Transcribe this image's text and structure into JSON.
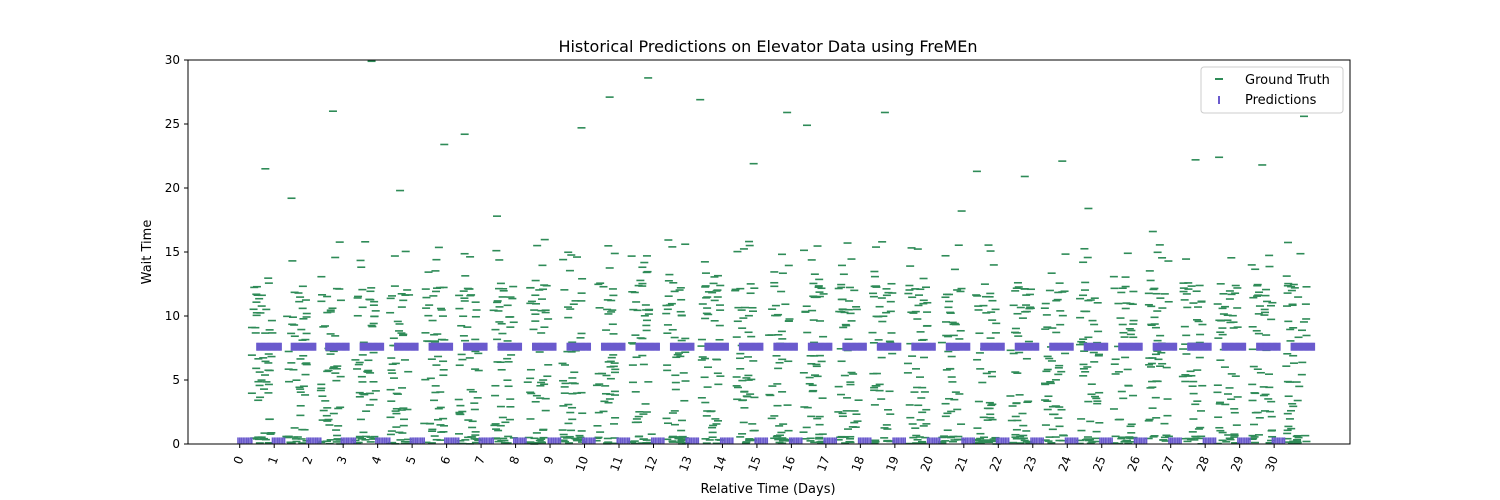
{
  "chart_data": {
    "type": "scatter",
    "title": "Historical Predictions on Elevator Data using FreMEn",
    "xlabel": "Relative Time (Days)",
    "ylabel": "Wait Time",
    "xlim": [
      -1.5,
      32.2
    ],
    "ylim": [
      0,
      30
    ],
    "xticks": [
      "0",
      "1",
      "2",
      "3",
      "4",
      "5",
      "6",
      "7",
      "8",
      "9",
      "10",
      "11",
      "12",
      "13",
      "14",
      "15",
      "16",
      "17",
      "18",
      "19",
      "20",
      "21",
      "22",
      "23",
      "24",
      "25",
      "26",
      "27",
      "28",
      "29",
      "30"
    ],
    "yticks": [
      0,
      5,
      10,
      15,
      20,
      25,
      30
    ],
    "legend": {
      "placement": "top-right",
      "entries": [
        {
          "name": "Ground Truth",
          "color": "#2e8b57",
          "marker": "_"
        },
        {
          "name": "Predictions",
          "color": "#6a5acd",
          "marker": "|"
        }
      ]
    },
    "series": [
      {
        "name": "Ground Truth",
        "color": "#2e8b57",
        "marker": "_",
        "points_per_day": 60,
        "daily_max": [
          21.5,
          19.2,
          26.0,
          29.9,
          19.8,
          23.4,
          24.2,
          17.8,
          15.5,
          24.7,
          27.1,
          28.6,
          15.4,
          26.9,
          21.9,
          25.9,
          24.9,
          15.7,
          25.9,
          13.9,
          18.2,
          21.3,
          20.9,
          22.1,
          18.4,
          14.9,
          16.6,
          22.2,
          22.4,
          21.8,
          25.6
        ]
      },
      {
        "name": "Predictions",
        "color": "#6a5acd",
        "marker": "|",
        "plateau_value": 7.6,
        "baseline_value": 0.2
      }
    ]
  }
}
